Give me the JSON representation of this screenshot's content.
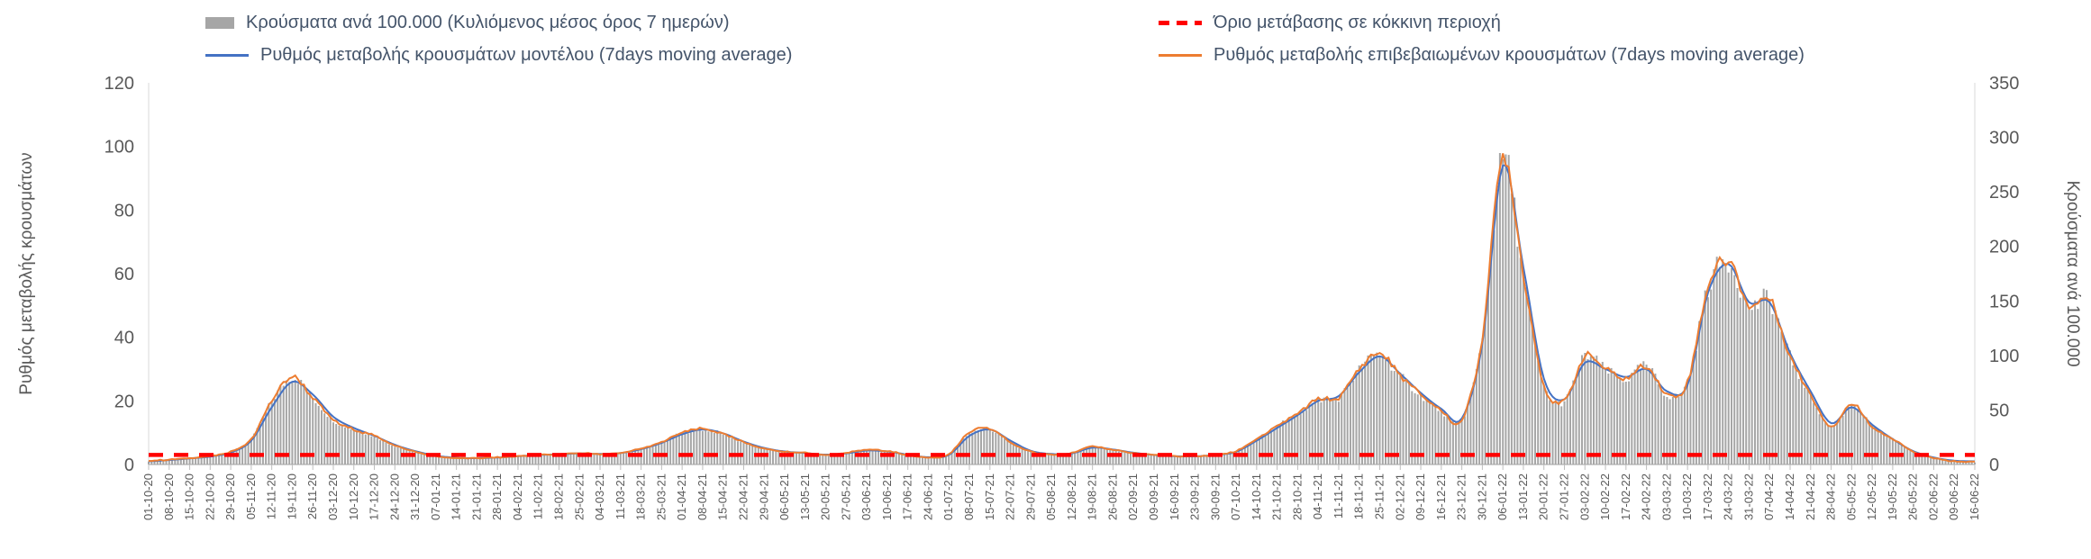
{
  "legend": {
    "items": [
      {
        "label": "Κρούσματα ανά 100.000 (Κυλιόμενος μέσος όρος 7 ημερών)",
        "swatch": "gray-bar",
        "color": "#a6a6a6"
      },
      {
        "label": "Όριο μετάβασης σε κόκκινη περιοχή",
        "swatch": "red-dashed-line",
        "color": "#ff0000"
      },
      {
        "label": "Ρυθμός μεταβολής κρουσμάτων μοντέλου (7days moving average)",
        "swatch": "line",
        "color": "#4472c4"
      },
      {
        "label": "Ρυθμός μεταβολής επιβεβαιωμένων κρουσμάτων (7days moving average)",
        "swatch": "line",
        "color": "#ed7d31"
      }
    ]
  },
  "chart_data": {
    "type": "bar+line combo, dual axis",
    "grid": false,
    "legend_position": "top",
    "left_axis": {
      "title": "Ρυθμός μεταβολής κρουσμάτων",
      "min": 0,
      "max": 120,
      "ticks": [
        0,
        20,
        40,
        60,
        80,
        100,
        120
      ]
    },
    "right_axis": {
      "title": "Κρούσματα ανά 100.000",
      "min": 0,
      "max": 350,
      "ticks": [
        0,
        50,
        100,
        150,
        200,
        250,
        300,
        350
      ]
    },
    "x": [
      "01-10-20",
      "08-10-20",
      "15-10-20",
      "22-10-20",
      "29-10-20",
      "05-11-20",
      "12-11-20",
      "19-11-20",
      "26-11-20",
      "03-12-20",
      "10-12-20",
      "17-12-20",
      "24-12-20",
      "31-12-20",
      "07-01-21",
      "14-01-21",
      "21-01-21",
      "28-01-21",
      "04-02-21",
      "11-02-21",
      "18-02-21",
      "25-02-21",
      "04-03-21",
      "11-03-21",
      "18-03-21",
      "25-03-21",
      "01-04-21",
      "08-04-21",
      "15-04-21",
      "22-04-21",
      "29-04-21",
      "06-05-21",
      "13-05-21",
      "20-05-21",
      "27-05-21",
      "03-06-21",
      "10-06-21",
      "17-06-21",
      "24-06-21",
      "01-07-21",
      "08-07-21",
      "15-07-21",
      "22-07-21",
      "29-07-21",
      "05-08-21",
      "12-08-21",
      "19-08-21",
      "26-08-21",
      "02-09-21",
      "09-09-21",
      "16-09-21",
      "23-09-21",
      "30-09-21",
      "07-10-21",
      "14-10-21",
      "21-10-21",
      "28-10-21",
      "04-11-21",
      "11-11-21",
      "18-11-21",
      "25-11-21",
      "02-12-21",
      "09-12-21",
      "16-12-21",
      "23-12-21",
      "30-12-21",
      "06-01-22",
      "13-01-22",
      "20-01-22",
      "27-01-22",
      "03-02-22",
      "10-02-22",
      "17-02-22",
      "24-02-22",
      "03-03-22",
      "10-03-22",
      "17-03-22",
      "24-03-22",
      "31-03-22",
      "07-04-22",
      "14-04-22",
      "21-04-22",
      "28-04-22",
      "05-05-22",
      "12-05-22",
      "19-05-22",
      "26-05-22",
      "02-06-22",
      "09-06-22",
      "16-06-22"
    ],
    "series": [
      {
        "name": "Κρούσματα ανά 100.000 (Κυλιόμενος μέσος όρος 7 ημερών)",
        "type": "bar",
        "axis": "right",
        "color": "#a6a6a6",
        "values": [
          3,
          4,
          6,
          8,
          12,
          23,
          58,
          80,
          61,
          41,
          32,
          26,
          17,
          12,
          8,
          6,
          6,
          6,
          8,
          9,
          9,
          10,
          9,
          10,
          15,
          20,
          29,
          32,
          28,
          20,
          15,
          12,
          10,
          9,
          10,
          13,
          12,
          9,
          6,
          9,
          29,
          32,
          20,
          12,
          9,
          10,
          16,
          13,
          10,
          9,
          8,
          8,
          9,
          12,
          23,
          35,
          46,
          59,
          61,
          87,
          101,
          81,
          64,
          49,
          41,
          116,
          281,
          174,
          73,
          58,
          99,
          87,
          78,
          90,
          64,
          75,
          162,
          186,
          145,
          151,
          99,
          64,
          35,
          55,
          35,
          23,
          12,
          6,
          3,
          2
        ]
      },
      {
        "name": "Ρυθμός μεταβολής κρουσμάτων μοντέλου (7days moving average)",
        "type": "line",
        "axis": "left",
        "color": "#4472c4",
        "values": [
          1,
          1.4,
          1.9,
          2.5,
          3.8,
          7.5,
          18,
          26,
          22,
          15,
          11.5,
          9,
          6.2,
          4.2,
          2.8,
          2.1,
          2,
          2.2,
          2.6,
          3,
          3.2,
          3.5,
          3.3,
          3.6,
          4.8,
          6.8,
          9.5,
          11,
          9.8,
          7.2,
          5.2,
          4.1,
          3.6,
          3.1,
          3.5,
          4.4,
          4.1,
          3.1,
          2.3,
          3,
          9,
          11,
          7.5,
          4.3,
          3.3,
          3.5,
          5.3,
          4.7,
          3.7,
          3,
          2.6,
          2.6,
          3,
          4,
          7.5,
          11.5,
          15.5,
          20,
          21.5,
          29,
          34,
          28.5,
          22.5,
          17.5,
          14.5,
          38,
          94,
          62,
          27,
          20.5,
          32,
          30,
          27.5,
          30,
          23,
          25,
          54,
          63,
          51,
          51,
          35,
          23,
          13,
          18,
          12.5,
          8,
          4.2,
          2.2,
          1.2,
          1
        ]
      },
      {
        "name": "Ρυθμός μεταβολής επιβεβαιωμένων κρουσμάτων (7days moving average)",
        "type": "line",
        "axis": "left",
        "color": "#ed7d31",
        "values": [
          1.2,
          1.5,
          2,
          2.6,
          4,
          8,
          20,
          27.5,
          21,
          14,
          11,
          9,
          6,
          4,
          2.6,
          2,
          2,
          2.2,
          2.6,
          3,
          3.2,
          3.6,
          3.2,
          3.6,
          5,
          7,
          10,
          11.2,
          9.5,
          7,
          5,
          4,
          3.6,
          3,
          3.6,
          4.6,
          4.2,
          3,
          2.2,
          3.2,
          10,
          11.2,
          7,
          4,
          3.2,
          3.6,
          5.6,
          4.6,
          3.6,
          3,
          2.6,
          2.6,
          3,
          4.2,
          8,
          12,
          16,
          20.5,
          21,
          30,
          35,
          28,
          22,
          17,
          14,
          40,
          97,
          60,
          25,
          20,
          34,
          30,
          27,
          31,
          22,
          26,
          56,
          64,
          50,
          52,
          34,
          22,
          12,
          19,
          12,
          8,
          4,
          2,
          1,
          0.8
        ]
      },
      {
        "name": "Όριο μετάβασης σε κόκκινη περιοχή",
        "type": "threshold-line",
        "axis": "left",
        "color": "#ff0000",
        "value": 3
      }
    ]
  }
}
